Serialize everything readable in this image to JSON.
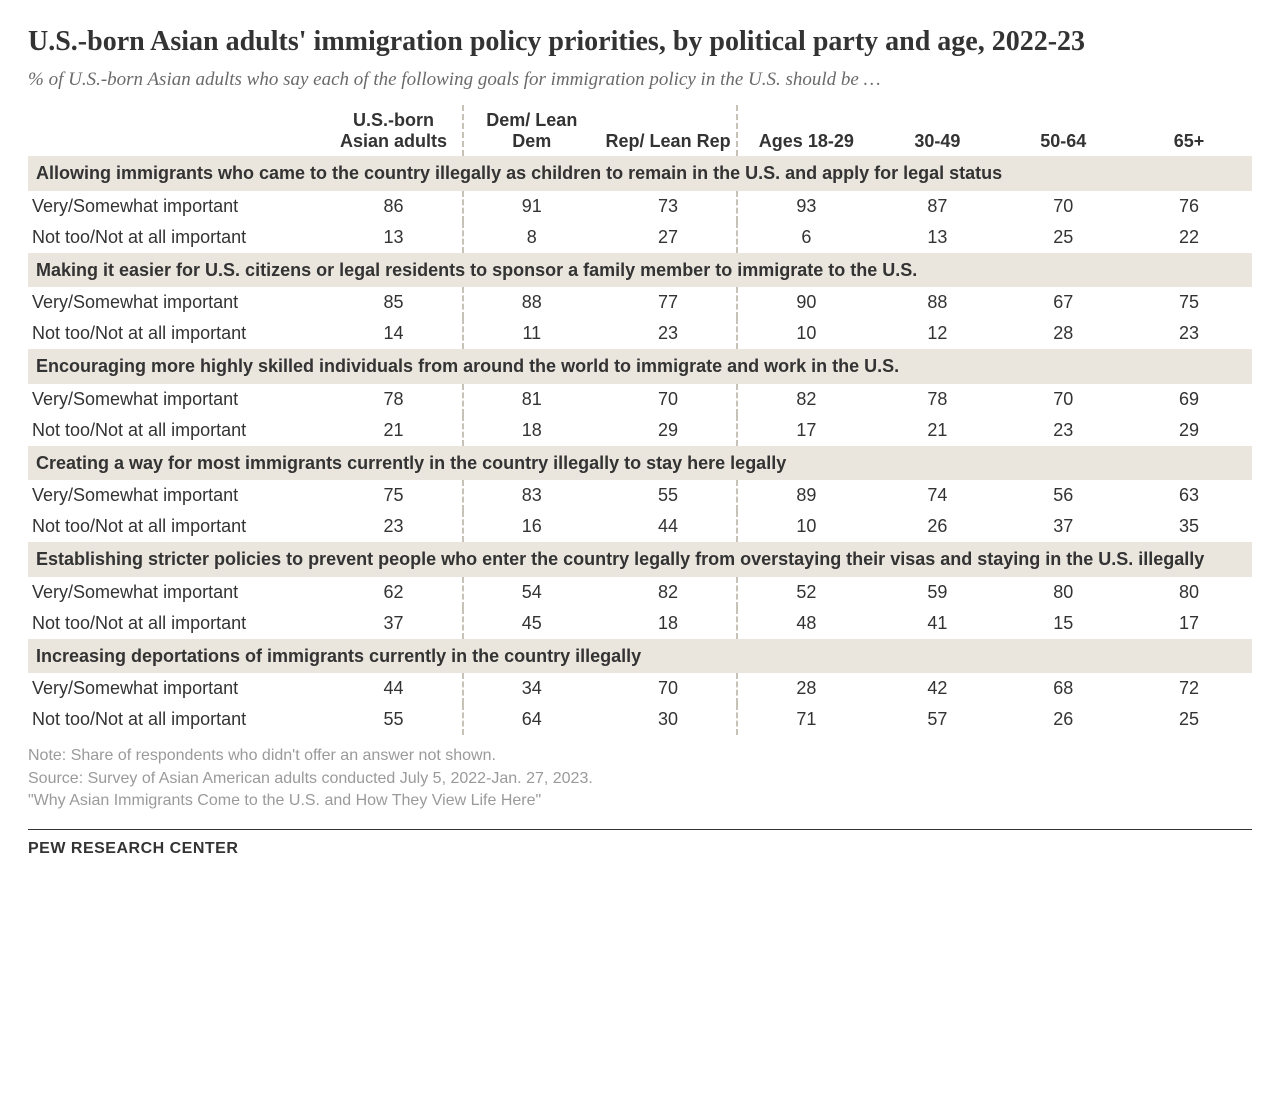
{
  "title": "U.S.-born Asian adults' immigration policy priorities, by political party and age, 2022-23",
  "subtitle": "% of U.S.-born Asian adults who say each of the following goals for immigration policy in the U.S. should be …",
  "columns": {
    "c1": "U.S.-born Asian adults",
    "c2": "Dem/ Lean Dem",
    "c3": "Rep/ Lean Rep",
    "c4": "Ages 18-29",
    "c5": "30-49",
    "c6": "50-64",
    "c7": "65+"
  },
  "row_labels": {
    "important": "Very/Somewhat important",
    "not_important": "Not too/Not at all important"
  },
  "sections": [
    {
      "header": "Allowing immigrants who came to the country illegally as children to remain in the U.S. and apply for legal status",
      "rows": [
        [
          86,
          91,
          73,
          93,
          87,
          70,
          76
        ],
        [
          13,
          8,
          27,
          6,
          13,
          25,
          22
        ]
      ]
    },
    {
      "header": "Making it easier for U.S. citizens or legal residents to sponsor a family member to immigrate to the U.S.",
      "rows": [
        [
          85,
          88,
          77,
          90,
          88,
          67,
          75
        ],
        [
          14,
          11,
          23,
          10,
          12,
          28,
          23
        ]
      ]
    },
    {
      "header": "Encouraging more highly skilled individuals from around the world to immigrate and work in the U.S.",
      "rows": [
        [
          78,
          81,
          70,
          82,
          78,
          70,
          69
        ],
        [
          21,
          18,
          29,
          17,
          21,
          23,
          29
        ]
      ]
    },
    {
      "header": "Creating a way for most immigrants currently in the country illegally to stay here legally",
      "rows": [
        [
          75,
          83,
          55,
          89,
          74,
          56,
          63
        ],
        [
          23,
          16,
          44,
          10,
          26,
          37,
          35
        ]
      ]
    },
    {
      "header": "Establishing stricter policies to prevent people who enter the country legally from overstaying their visas and staying in the U.S. illegally",
      "rows": [
        [
          62,
          54,
          82,
          52,
          59,
          80,
          80
        ],
        [
          37,
          45,
          18,
          48,
          41,
          15,
          17
        ]
      ]
    },
    {
      "header": "Increasing deportations of immigrants currently in the country illegally",
      "rows": [
        [
          44,
          34,
          70,
          28,
          42,
          68,
          72
        ],
        [
          55,
          64,
          30,
          71,
          57,
          26,
          25
        ]
      ]
    }
  ],
  "notes": {
    "n1": "Note: Share of respondents who didn't offer an answer not shown.",
    "n2": "Source: Survey of Asian American adults conducted July 5, 2022-Jan. 27, 2023.",
    "n3": "\"Why Asian Immigrants Come to the U.S. and How They View Life Here\""
  },
  "footer": "PEW RESEARCH CENTER",
  "colors": {
    "section_bg": "#eae6de",
    "text": "#333333",
    "subtitle": "#6a6a6a",
    "notes": "#9a9a9a",
    "dash": "#c7c2b8",
    "background": "#ffffff"
  }
}
